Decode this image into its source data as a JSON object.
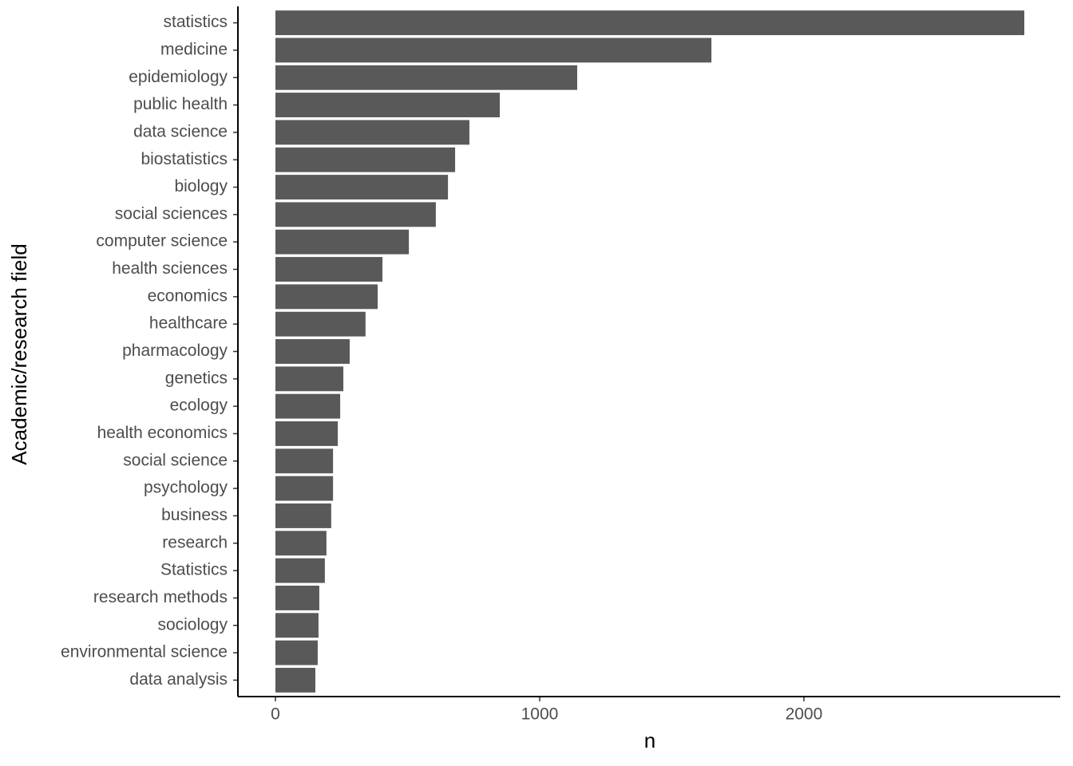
{
  "chart_data": {
    "type": "bar",
    "orientation": "horizontal",
    "xlabel": "n",
    "ylabel": "Academic/research field",
    "categories": [
      "statistics",
      "medicine",
      "epidemiology",
      "public health",
      "data science",
      "biostatistics",
      "biology",
      "social sciences",
      "computer science",
      "health sciences",
      "economics",
      "healthcare",
      "pharmacology",
      "genetics",
      "ecology",
      "health economics",
      "social science",
      "psychology",
      "business",
      "research",
      "Statistics",
      "research methods",
      "sociology",
      "environmental science",
      "data analysis"
    ],
    "values": [
      2834,
      1650,
      1142,
      849,
      734,
      680,
      653,
      607,
      505,
      405,
      387,
      341,
      281,
      257,
      245,
      236,
      218,
      218,
      211,
      193,
      187,
      166,
      163,
      160,
      151
    ],
    "color": "#595959",
    "xlim": [
      -142,
      2970
    ],
    "xticks": [
      0,
      1000,
      2000
    ],
    "grid": false
  }
}
